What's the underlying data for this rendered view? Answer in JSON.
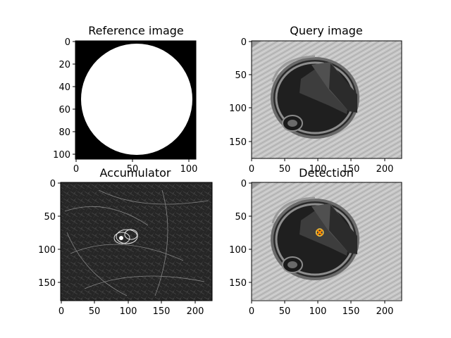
{
  "panels": [
    {
      "id": "reference",
      "title": "Reference image",
      "x_ticks": [
        "0",
        "50",
        "100"
      ],
      "y_ticks": [
        "0",
        "20",
        "40",
        "60",
        "80",
        "100"
      ]
    },
    {
      "id": "query",
      "title": "Query image",
      "x_ticks": [
        "0",
        "50",
        "100",
        "150",
        "200"
      ],
      "y_ticks": [
        "0",
        "50",
        "100",
        "150"
      ]
    },
    {
      "id": "accumulator",
      "title": "Accumulator",
      "x_ticks": [
        "0",
        "50",
        "100",
        "150",
        "200"
      ],
      "y_ticks": [
        "0",
        "50",
        "100",
        "150"
      ]
    },
    {
      "id": "detection",
      "title": "Detection",
      "x_ticks": [
        "0",
        "50",
        "100",
        "150",
        "200"
      ],
      "y_ticks": [
        "0",
        "50",
        "100",
        "150"
      ]
    }
  ],
  "detection_marker": {
    "x": 102,
    "y": 75,
    "symbol": "x",
    "color": "#ff8c00"
  },
  "colors": {
    "background": "#ffffff",
    "ink": "#000000",
    "image_gray": "#bdbdbd",
    "hole_dark": "#2a2a2a",
    "accumulator_bg": "#2a2a2a"
  }
}
